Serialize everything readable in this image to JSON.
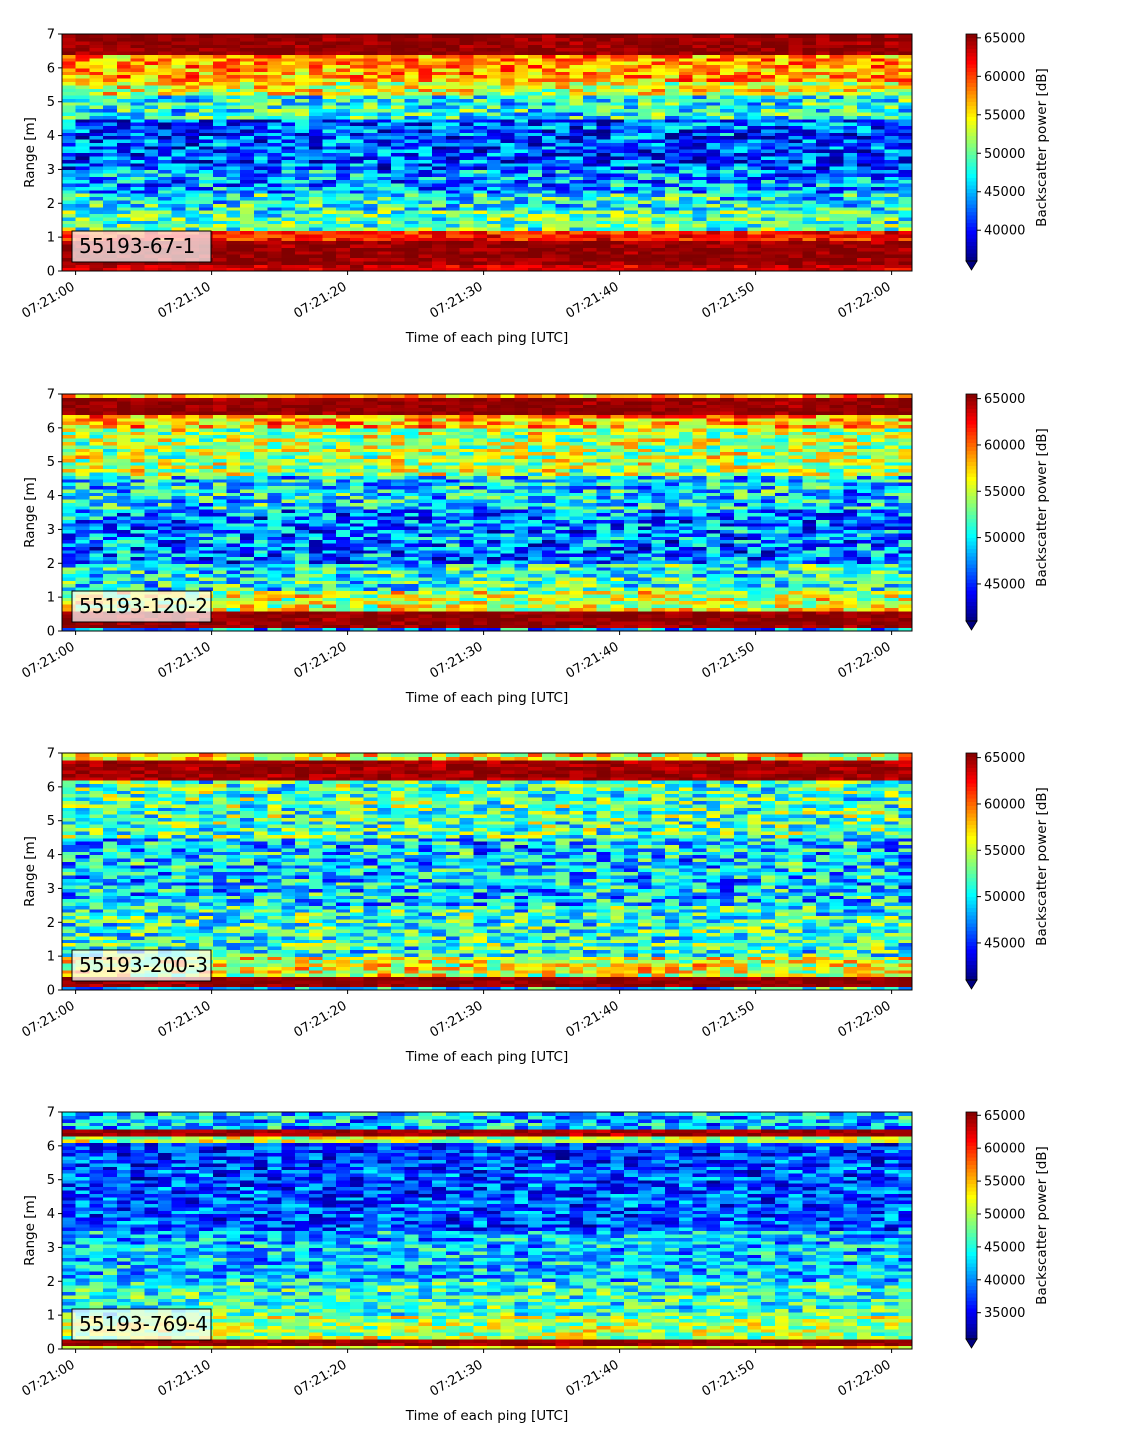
{
  "chart_data": [
    {
      "type": "heatmap",
      "panel_label": "55193-67-1",
      "xlabel": "Time of each ping [UTC]",
      "ylabel": "Range [m]",
      "x_ticks": [
        "07:21:00",
        "07:21:10",
        "07:21:20",
        "07:21:30",
        "07:21:40",
        "07:21:50",
        "07:22:00"
      ],
      "y_ticks": [
        "0",
        "1",
        "2",
        "3",
        "4",
        "5",
        "6",
        "7"
      ],
      "x_range_s": [
        -1,
        61.5
      ],
      "ylim": [
        0,
        7
      ],
      "colormap": "jet",
      "colorbar_label": "Backscatter power [dB]",
      "colorbar_range": [
        36000,
        65500
      ],
      "colorbar_extend": "min",
      "colorbar_ticks": [
        "40000",
        "45000",
        "50000",
        "55000",
        "60000",
        "65000"
      ],
      "seed": 11,
      "bands": [
        {
          "range": [
            0,
            0.25
          ],
          "level": 0.92,
          "spread": 0.05
        },
        {
          "range": [
            0.25,
            0.95
          ],
          "level": 0.98,
          "spread": 0.04
        },
        {
          "range": [
            0.95,
            1.2
          ],
          "level": 0.85,
          "spread": 0.1
        },
        {
          "range": [
            1.2,
            1.8
          ],
          "level": 0.45,
          "spread": 0.18
        },
        {
          "range": [
            1.8,
            2.3
          ],
          "level": 0.38,
          "spread": 0.2
        },
        {
          "range": [
            2.3,
            3.0
          ],
          "level": 0.28,
          "spread": 0.2
        },
        {
          "range": [
            3.0,
            4.5
          ],
          "level": 0.2,
          "spread": 0.2
        },
        {
          "range": [
            4.5,
            5.2
          ],
          "level": 0.4,
          "spread": 0.2
        },
        {
          "range": [
            5.2,
            5.6
          ],
          "level": 0.6,
          "spread": 0.18
        },
        {
          "range": [
            5.6,
            6.4
          ],
          "level": 0.72,
          "spread": 0.15
        },
        {
          "range": [
            6.4,
            7.0
          ],
          "level": 0.98,
          "spread": 0.03
        }
      ]
    },
    {
      "type": "heatmap",
      "panel_label": "55193-120-2",
      "xlabel": "Time of each ping [UTC]",
      "ylabel": "Range [m]",
      "x_ticks": [
        "07:21:00",
        "07:21:10",
        "07:21:20",
        "07:21:30",
        "07:21:40",
        "07:21:50",
        "07:22:00"
      ],
      "y_ticks": [
        "0",
        "1",
        "2",
        "3",
        "4",
        "5",
        "6",
        "7"
      ],
      "x_range_s": [
        -1,
        61.5
      ],
      "ylim": [
        0,
        7
      ],
      "colormap": "jet",
      "colorbar_label": "Backscatter power [dB]",
      "colorbar_range": [
        41000,
        65500
      ],
      "colorbar_extend": "min",
      "colorbar_ticks": [
        "45000",
        "50000",
        "55000",
        "60000",
        "65000"
      ],
      "seed": 23,
      "bands": [
        {
          "range": [
            0,
            0.12
          ],
          "level": 0.3,
          "spread": 0.2
        },
        {
          "range": [
            0.12,
            0.6
          ],
          "level": 0.98,
          "spread": 0.03
        },
        {
          "range": [
            0.6,
            1.2
          ],
          "level": 0.58,
          "spread": 0.2
        },
        {
          "range": [
            1.2,
            2.0
          ],
          "level": 0.4,
          "spread": 0.22
        },
        {
          "range": [
            2.0,
            3.6
          ],
          "level": 0.25,
          "spread": 0.22
        },
        {
          "range": [
            3.6,
            4.6
          ],
          "level": 0.35,
          "spread": 0.22
        },
        {
          "range": [
            4.6,
            6.0
          ],
          "level": 0.55,
          "spread": 0.2
        },
        {
          "range": [
            6.0,
            6.4
          ],
          "level": 0.7,
          "spread": 0.18
        },
        {
          "range": [
            6.4,
            6.95
          ],
          "level": 0.98,
          "spread": 0.03
        },
        {
          "range": [
            6.95,
            7.0
          ],
          "level": 0.7,
          "spread": 0.15
        }
      ]
    },
    {
      "type": "heatmap",
      "panel_label": "55193-200-3",
      "xlabel": "Time of each ping [UTC]",
      "ylabel": "Range [m]",
      "x_ticks": [
        "07:21:00",
        "07:21:10",
        "07:21:20",
        "07:21:30",
        "07:21:40",
        "07:21:50",
        "07:22:00"
      ],
      "y_ticks": [
        "0",
        "1",
        "2",
        "3",
        "4",
        "5",
        "6",
        "7"
      ],
      "x_range_s": [
        -1,
        61.5
      ],
      "ylim": [
        0,
        7
      ],
      "colormap": "jet",
      "colorbar_label": "Backscatter power [dB]",
      "colorbar_range": [
        41000,
        65500
      ],
      "colorbar_extend": "min",
      "colorbar_ticks": [
        "45000",
        "50000",
        "55000",
        "60000",
        "65000"
      ],
      "seed": 37,
      "bands": [
        {
          "range": [
            0,
            0.15
          ],
          "level": 0.35,
          "spread": 0.2
        },
        {
          "range": [
            0.15,
            0.4
          ],
          "level": 0.98,
          "spread": 0.03
        },
        {
          "range": [
            0.4,
            1.0
          ],
          "level": 0.6,
          "spread": 0.2
        },
        {
          "range": [
            1.0,
            2.5
          ],
          "level": 0.42,
          "spread": 0.22
        },
        {
          "range": [
            2.5,
            4.5
          ],
          "level": 0.33,
          "spread": 0.22
        },
        {
          "range": [
            4.5,
            6.2
          ],
          "level": 0.45,
          "spread": 0.22
        },
        {
          "range": [
            6.2,
            6.8
          ],
          "level": 0.97,
          "spread": 0.04
        },
        {
          "range": [
            6.8,
            7.0
          ],
          "level": 0.65,
          "spread": 0.2
        }
      ]
    },
    {
      "type": "heatmap",
      "panel_label": "55193-769-4",
      "xlabel": "Time of each ping [UTC]",
      "ylabel": "Range [m]",
      "x_ticks": [
        "07:21:00",
        "07:21:10",
        "07:21:20",
        "07:21:30",
        "07:21:40",
        "07:21:50",
        "07:22:00"
      ],
      "y_ticks": [
        "0",
        "1",
        "2",
        "3",
        "4",
        "5",
        "6",
        "7"
      ],
      "x_range_s": [
        -1,
        61.5
      ],
      "ylim": [
        0,
        7
      ],
      "colormap": "jet",
      "colorbar_label": "Backscatter power [dB]",
      "colorbar_range": [
        31000,
        65500
      ],
      "colorbar_extend": "min",
      "colorbar_ticks": [
        "35000",
        "40000",
        "45000",
        "50000",
        "55000",
        "60000",
        "65000"
      ],
      "seed": 53,
      "bands": [
        {
          "range": [
            0,
            0.1
          ],
          "level": 0.65,
          "spread": 0.1
        },
        {
          "range": [
            0.1,
            0.3
          ],
          "level": 0.98,
          "spread": 0.03
        },
        {
          "range": [
            0.3,
            1.0
          ],
          "level": 0.55,
          "spread": 0.18
        },
        {
          "range": [
            1.0,
            2.0
          ],
          "level": 0.42,
          "spread": 0.18
        },
        {
          "range": [
            2.0,
            3.5
          ],
          "level": 0.32,
          "spread": 0.18
        },
        {
          "range": [
            3.5,
            5.5
          ],
          "level": 0.2,
          "spread": 0.16
        },
        {
          "range": [
            5.5,
            6.1
          ],
          "level": 0.18,
          "spread": 0.15
        },
        {
          "range": [
            6.1,
            6.3
          ],
          "level": 0.55,
          "spread": 0.15
        },
        {
          "range": [
            6.3,
            6.55
          ],
          "level": 0.96,
          "spread": 0.04
        },
        {
          "range": [
            6.55,
            7.0
          ],
          "level": 0.32,
          "spread": 0.2
        }
      ]
    }
  ]
}
